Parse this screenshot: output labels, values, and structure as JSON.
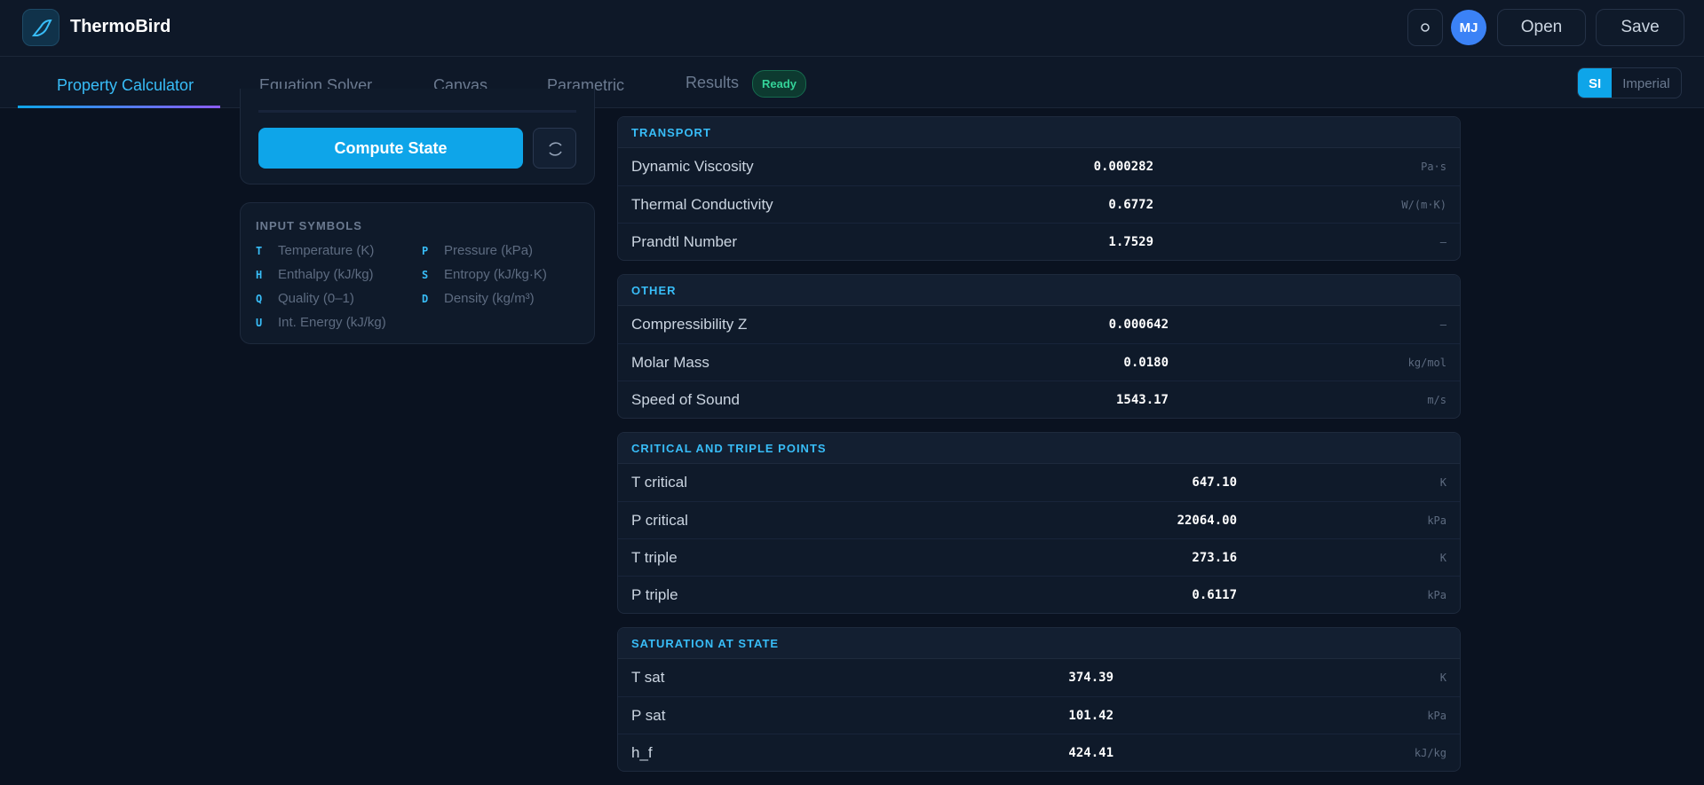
{
  "header": {
    "app_name": "ThermoBird",
    "avatar": "MJ",
    "open": "Open",
    "save": "Save"
  },
  "tabs": [
    "Property Calculator",
    "Equation Solver",
    "Canvas",
    "Parametric",
    "Results"
  ],
  "results_badge": "Ready",
  "units": [
    "SI",
    "Imperial"
  ],
  "compute_button": "Compute State",
  "input_symbols": {
    "title": "INPUT SYMBOLS",
    "items": [
      {
        "symbol": "T",
        "label": "Temperature (K)"
      },
      {
        "symbol": "P",
        "label": "Pressure (kPa)"
      },
      {
        "symbol": "H",
        "label": "Enthalpy (kJ/kg)"
      },
      {
        "symbol": "S",
        "label": "Entropy (kJ/kg·K)"
      },
      {
        "symbol": "Q",
        "label": "Quality (0–1)"
      },
      {
        "symbol": "D",
        "label": "Density (kg/m³)"
      },
      {
        "symbol": "U",
        "label": "Int. Energy (kJ/kg)"
      }
    ]
  },
  "sections": [
    {
      "title": "TRANSPORT",
      "rows": [
        [
          "Dynamic Viscosity",
          "0.000282",
          "Pa·s"
        ],
        [
          "Thermal Conductivity",
          "0.6772",
          "W/(m·K)"
        ],
        [
          "Prandtl Number",
          "1.7529",
          "—"
        ]
      ]
    },
    {
      "title": "OTHER",
      "rows": [
        [
          "Compressibility Z",
          "0.000642",
          "—"
        ],
        [
          "Molar Mass",
          "0.0180",
          "kg/mol"
        ],
        [
          "Speed of Sound",
          "1543.17",
          "m/s"
        ]
      ]
    },
    {
      "title": "CRITICAL AND TRIPLE POINTS",
      "rows": [
        [
          "T critical",
          "647.10",
          "K"
        ],
        [
          "P critical",
          "22064.00",
          "kPa"
        ],
        [
          "T triple",
          "273.16",
          "K"
        ],
        [
          "P triple",
          "0.6117",
          "kPa"
        ]
      ]
    },
    {
      "title": "SATURATION AT STATE",
      "rows": [
        [
          "T sat",
          "374.39",
          "K"
        ],
        [
          "P sat",
          "101.42",
          "kPa"
        ],
        [
          "h_f",
          "424.41",
          "kJ/kg"
        ]
      ]
    }
  ]
}
